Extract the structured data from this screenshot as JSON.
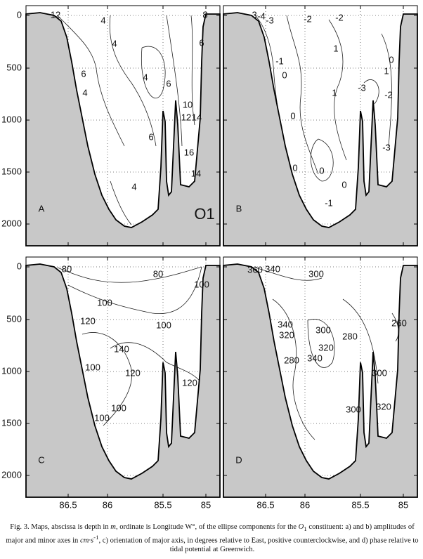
{
  "panels": [
    {
      "letter": "A",
      "tag": "O1",
      "contour_labels": [
        "12",
        "4",
        "4",
        "6",
        "4",
        "4",
        "6",
        "8",
        "6",
        "10",
        "12",
        "14",
        "16",
        "14",
        "6",
        "4"
      ]
    },
    {
      "letter": "B",
      "contour_labels": [
        "-3",
        "-4",
        "-3",
        "-2",
        "-2",
        "-1",
        "0",
        "1",
        "0",
        "1",
        "-3",
        "1",
        "-2",
        "0",
        "-3",
        "0",
        "0",
        "0",
        "-1"
      ]
    },
    {
      "letter": "C",
      "contour_labels": [
        "80",
        "80",
        "100",
        "100",
        "120",
        "100",
        "140",
        "100",
        "120",
        "120",
        "100",
        "100"
      ]
    },
    {
      "letter": "D",
      "contour_labels": [
        "360",
        "340",
        "300",
        "340",
        "320",
        "280",
        "300",
        "320",
        "340",
        "280",
        "260",
        "300",
        "300",
        "320"
      ]
    }
  ],
  "y_ticks": [
    "0",
    "500",
    "1000",
    "1500",
    "2000"
  ],
  "x_ticks": [
    "86.5",
    "86",
    "85.5",
    "85"
  ],
  "caption": [
    "Fig. 3. Maps, abscissa is depth in ",
    "m",
    ", ordinate is Longitude W°, of the ellipse components for the ",
    "O",
    "1",
    " constituent: a) and b) amplitudes of major and minor axes in ",
    "cm·s",
    "-1",
    ", c) orientation of major axis, in degrees relative to East, positive counterclockwise, and d) phase relative to tidal potential at Greenwich."
  ]
}
